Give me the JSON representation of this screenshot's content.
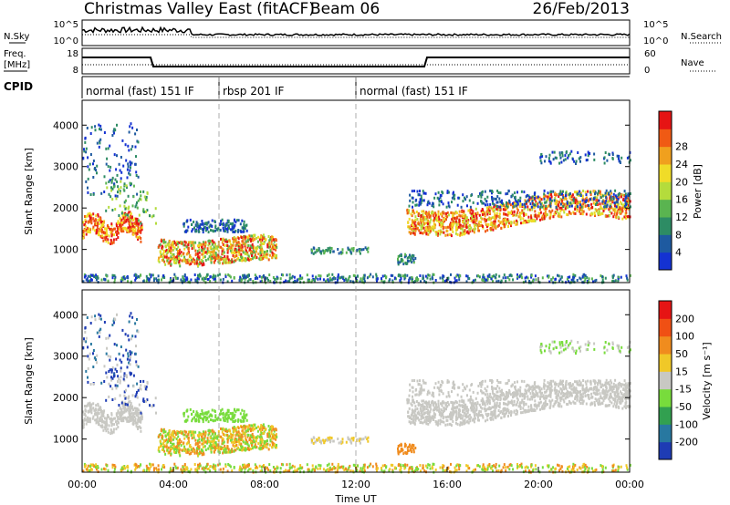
{
  "header": {
    "title": "Christmas Valley East (fitACF)",
    "beam": "Beam 06",
    "date": "26/Feb/2013"
  },
  "noise_panel": {
    "left_label": "N.Sky",
    "right_label": "N.Search",
    "left_ticks": [
      "10^5",
      "10^0"
    ],
    "right_ticks": [
      "10^5",
      "10^0"
    ]
  },
  "freq_panel": {
    "left_label_1": "Freq.",
    "left_label_2": "[MHz]",
    "right_label": "Nave",
    "left_ticks": [
      "18",
      "8"
    ],
    "right_ticks": [
      "60",
      "0"
    ]
  },
  "cpid_panel": {
    "label": "CPID",
    "segments": [
      {
        "start": 0,
        "end": 6,
        "text": "normal (fast) 151 IF"
      },
      {
        "start": 6,
        "end": 12,
        "text": "rbsp 201 IF"
      },
      {
        "start": 12,
        "end": 24,
        "text": "normal (fast) 151 IF"
      }
    ]
  },
  "chart_data": [
    {
      "type": "heatmap",
      "name": "power",
      "ylabel": "Slant Range [km]",
      "ylim": [
        200,
        4600
      ],
      "yticks": [
        "1000",
        "2000",
        "3000",
        "4000"
      ],
      "colorbar_label": "Power [dB]",
      "colorbar_ticks": [
        "4",
        "8",
        "12",
        "16",
        "20",
        "24",
        "28"
      ],
      "colorbar_colors": [
        "#1432d2",
        "#1e5aa0",
        "#2d8c64",
        "#5ab450",
        "#b4dc3c",
        "#f0dc28",
        "#f0a01e",
        "#f05a14",
        "#e61414"
      ]
    },
    {
      "type": "heatmap",
      "name": "velocity",
      "ylabel": "Slant Range [km]",
      "ylim": [
        200,
        4600
      ],
      "yticks": [
        "1000",
        "2000",
        "3000",
        "4000"
      ],
      "colorbar_label": "Velocity [m s⁻¹]",
      "colorbar_ticks": [
        "200",
        "100",
        "50",
        "15",
        "-15",
        "-50",
        "-100",
        "-200"
      ],
      "colorbar_colors": [
        "#1e3cb4",
        "#2878a0",
        "#32a050",
        "#78dc3c",
        "#c8c8c3",
        "#f0c828",
        "#f08c1e",
        "#f05014",
        "#e61414"
      ]
    }
  ],
  "x_axis": {
    "label": "Time UT",
    "ticks": [
      "00:00",
      "04:00",
      "08:00",
      "12:00",
      "16:00",
      "20:00",
      "00:00"
    ]
  }
}
